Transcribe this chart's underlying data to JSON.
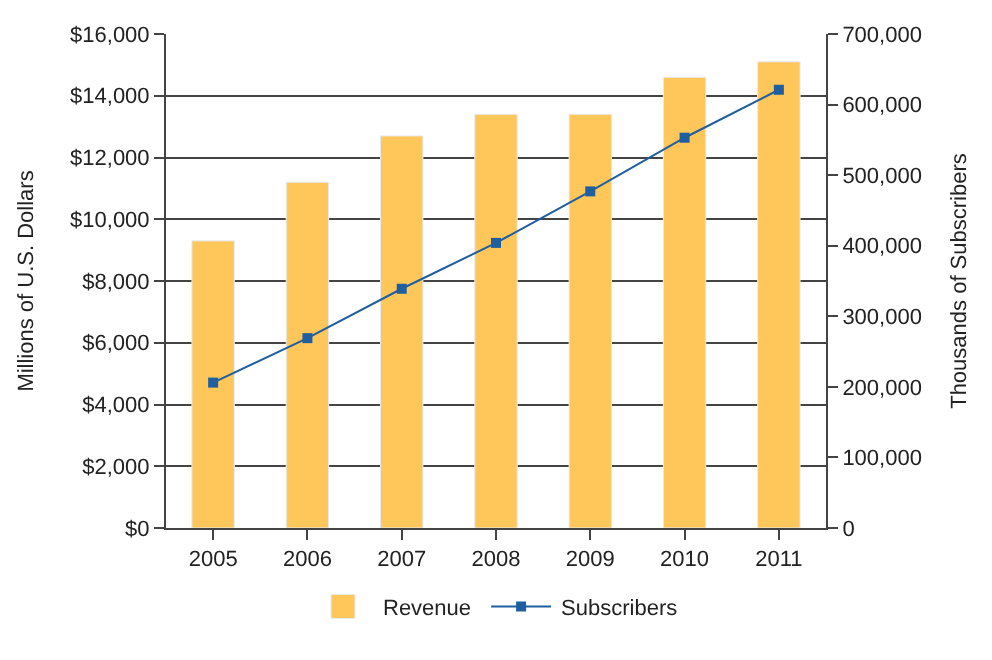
{
  "chart_data": {
    "type": "bar",
    "ylabel": "Millions of U.S. Dollars",
    "y2label": "Thousands of Subscribers",
    "categories": [
      "2005",
      "2006",
      "2007",
      "2008",
      "2009",
      "2010",
      "2011"
    ],
    "series": [
      {
        "name": "Revenue",
        "color": "#ffc65a",
        "values": [
          9300,
          11200,
          12700,
          13400,
          13400,
          14600,
          15100
        ]
      },
      {
        "name": "Subscribers",
        "type": "line",
        "axis": "y2",
        "color": "#1f5f9f",
        "marker": "square",
        "values": [
          206000,
          269000,
          339000,
          404000,
          477000,
          553000,
          621000
        ]
      }
    ],
    "ylim": [
      0,
      16000
    ],
    "yticks": [
      {
        "value": 0,
        "label": "$0"
      },
      {
        "value": 2000,
        "label": "$2,000"
      },
      {
        "value": 4000,
        "label": "$4,000"
      },
      {
        "value": 6000,
        "label": "$6,000"
      },
      {
        "value": 8000,
        "label": "$8,000"
      },
      {
        "value": 10000,
        "label": "$10,000"
      },
      {
        "value": 12000,
        "label": "$12,000"
      },
      {
        "value": 14000,
        "label": "$14,000"
      },
      {
        "value": 16000,
        "label": "$16,000"
      }
    ],
    "y2lim": [
      0,
      700000
    ],
    "y2ticks": [
      {
        "value": 0,
        "label": "0"
      },
      {
        "value": 100000,
        "label": "100,000"
      },
      {
        "value": 200000,
        "label": "200,000"
      },
      {
        "value": 300000,
        "label": "300,000"
      },
      {
        "value": 400000,
        "label": "400,000"
      },
      {
        "value": 500000,
        "label": "500,000"
      },
      {
        "value": 600000,
        "label": "600,000"
      },
      {
        "value": 700000,
        "label": "700,000"
      }
    ],
    "grid": "y",
    "legend": "bottom"
  }
}
